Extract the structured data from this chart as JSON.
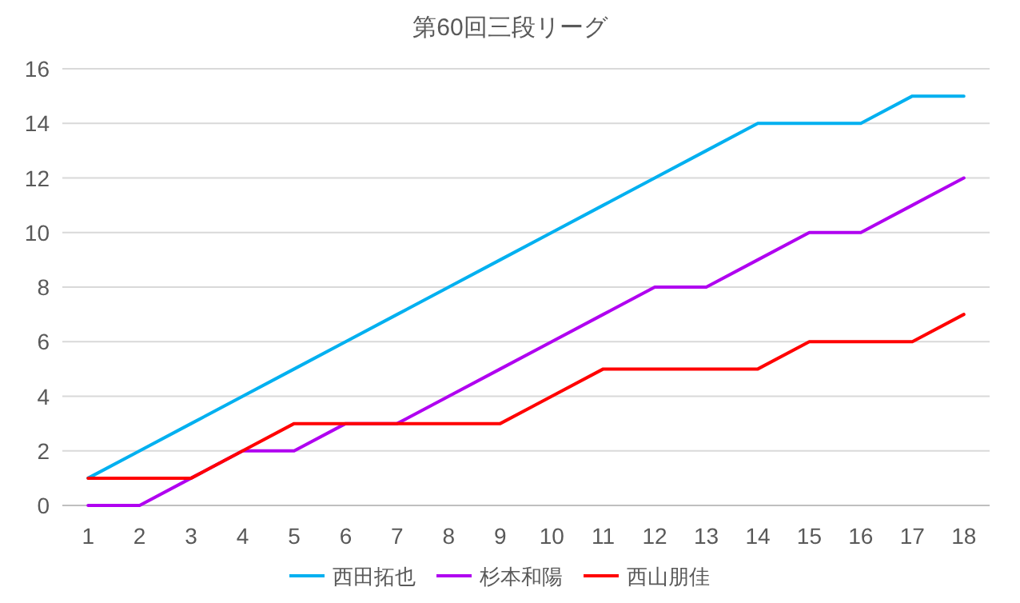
{
  "chart_data": {
    "type": "line",
    "title": "第60回三段リーグ",
    "categories": [
      "1",
      "2",
      "3",
      "4",
      "5",
      "6",
      "7",
      "8",
      "9",
      "10",
      "11",
      "12",
      "13",
      "14",
      "15",
      "16",
      "17",
      "18"
    ],
    "series": [
      {
        "name": "西田拓也",
        "color": "#00b0f0",
        "values": [
          1,
          2,
          3,
          4,
          5,
          6,
          7,
          8,
          9,
          10,
          11,
          12,
          13,
          14,
          14,
          14,
          15,
          15
        ]
      },
      {
        "name": "杉本和陽",
        "color": "#b000f0",
        "values": [
          0,
          0,
          1,
          2,
          2,
          3,
          3,
          4,
          5,
          6,
          7,
          8,
          8,
          9,
          10,
          10,
          11,
          12
        ]
      },
      {
        "name": "西山朋佳",
        "color": "#ff0000",
        "values": [
          1,
          1,
          1,
          2,
          3,
          3,
          3,
          3,
          3,
          4,
          5,
          5,
          5,
          5,
          6,
          6,
          6,
          7
        ]
      }
    ],
    "ylim": [
      0,
      16
    ],
    "yticks": [
      0,
      2,
      4,
      6,
      8,
      10,
      12,
      14,
      16
    ],
    "grid": "y",
    "legend": "bottom",
    "marker": "none",
    "line_style": "solid"
  }
}
